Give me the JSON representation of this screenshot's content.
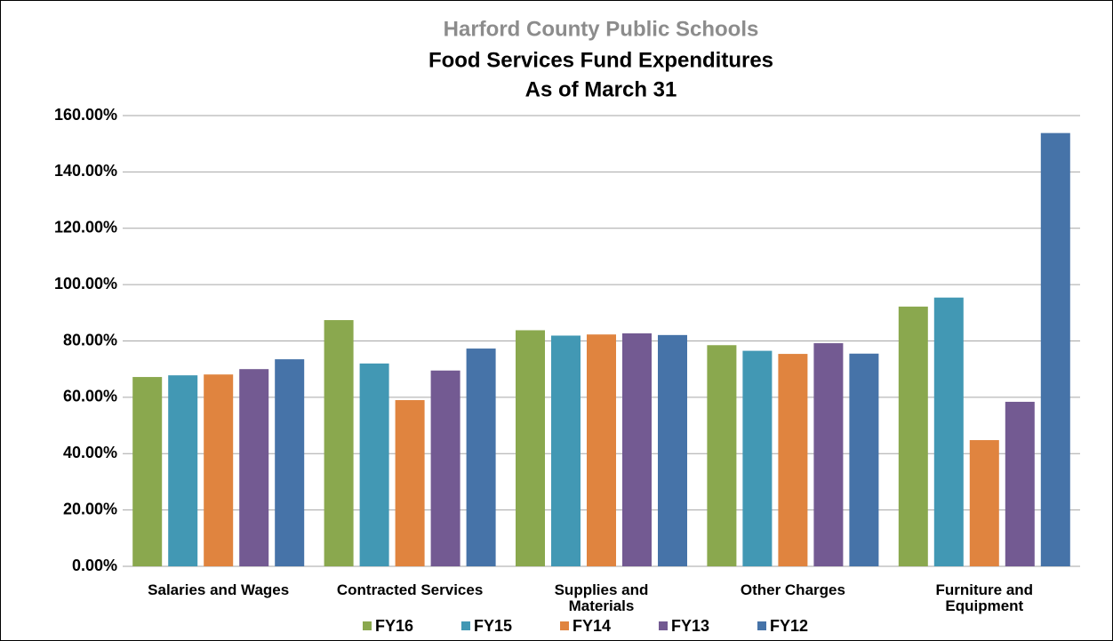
{
  "chart_data": {
    "type": "bar",
    "title": "Harford County Public Schools",
    "subtitle": "Food Services Fund Expenditures",
    "subtitle2": "As of March 31",
    "categories": [
      "Salaries and Wages",
      "Contracted Services",
      "Supplies and Materials",
      "Other Charges",
      "Furniture and Equipment"
    ],
    "series": [
      {
        "name": "FY16",
        "color": "#8aa84e",
        "values": [
          67.2,
          87.4,
          83.8,
          78.5,
          92.2
        ]
      },
      {
        "name": "FY15",
        "color": "#4298b4",
        "values": [
          67.8,
          72.0,
          81.9,
          76.5,
          95.4
        ]
      },
      {
        "name": "FY14",
        "color": "#e0843f",
        "values": [
          68.1,
          59.0,
          82.3,
          75.4,
          44.8
        ]
      },
      {
        "name": "FY13",
        "color": "#735a92",
        "values": [
          70.0,
          69.5,
          82.7,
          79.2,
          58.4
        ]
      },
      {
        "name": "FY12",
        "color": "#4673a8",
        "values": [
          73.5,
          77.3,
          82.1,
          75.5,
          153.8
        ]
      }
    ],
    "ylim": [
      0,
      160
    ],
    "yticks": [
      {
        "value": 0,
        "label": "0.00%"
      },
      {
        "value": 20,
        "label": "20.00%"
      },
      {
        "value": 40,
        "label": "40.00%"
      },
      {
        "value": 60,
        "label": "60.00%"
      },
      {
        "value": 80,
        "label": "80.00%"
      },
      {
        "value": 100,
        "label": "100.00%"
      },
      {
        "value": 120,
        "label": "120.00%"
      },
      {
        "value": 140,
        "label": "140.00%"
      },
      {
        "value": 160,
        "label": "160.00%"
      }
    ],
    "grid": true,
    "legend": "bottom"
  }
}
